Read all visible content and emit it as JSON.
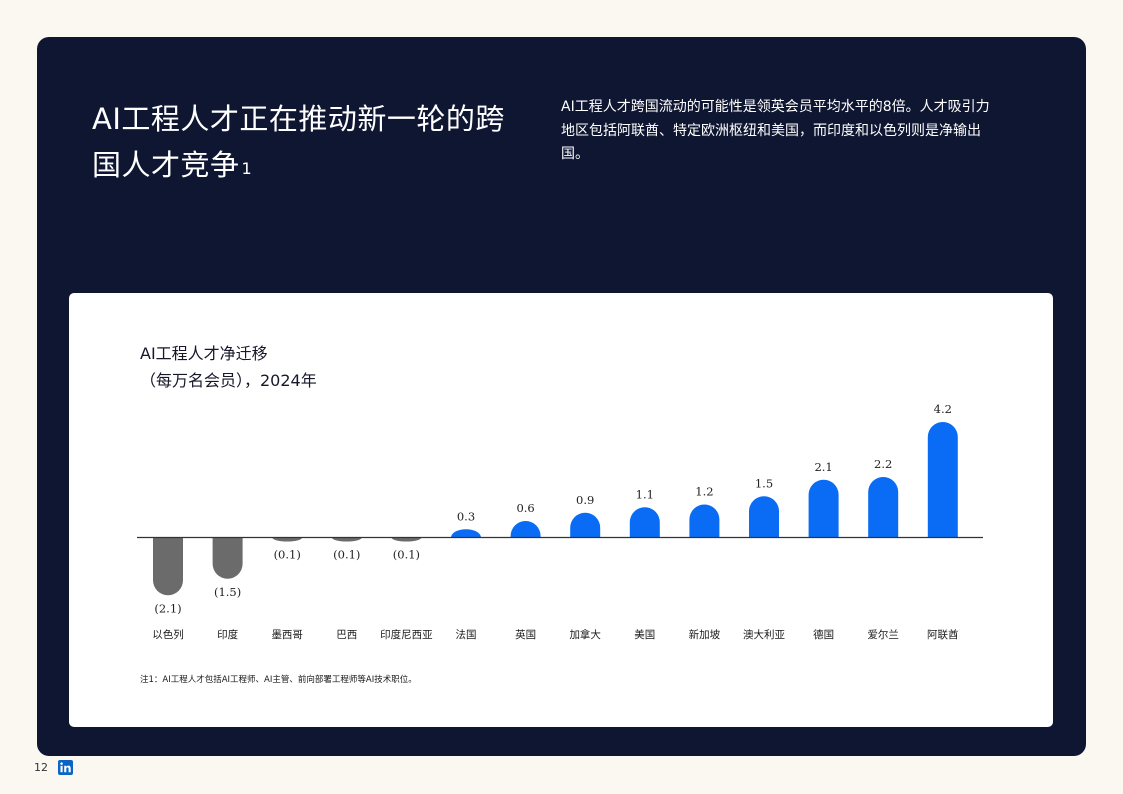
{
  "headline": {
    "text": "AI工程人才正在推动新一轮的跨国人才竞争",
    "footnote_mark": "1"
  },
  "intro": "AI工程人才跨国流动的可能性是领英会员平均水平的8倍。人才吸引力地区包括阿联酋、特定欧洲枢纽和美国，而印度和以色列则是净输出国。",
  "chart_data": {
    "type": "bar",
    "title": "AI工程人才净迁移",
    "subtitle": "（每万名会员），2024年",
    "categories": [
      "以色列",
      "印度",
      "墨西哥",
      "巴西",
      "印度尼西亚",
      "法国",
      "英国",
      "加拿大",
      "美国",
      "新加坡",
      "澳大利亚",
      "德国",
      "爱尔兰",
      "阿联酋"
    ],
    "values": [
      -2.1,
      -1.5,
      -0.1,
      -0.1,
      -0.1,
      0.3,
      0.6,
      0.9,
      1.1,
      1.2,
      1.5,
      2.1,
      2.2,
      4.2
    ],
    "value_labels": [
      "(2.1)",
      "(1.5)",
      "(0.1)",
      "(0.1)",
      "(0.1)",
      "0.3",
      "0.6",
      "0.9",
      "1.1",
      "1.2",
      "1.5",
      "2.1",
      "2.2",
      "4.2"
    ],
    "colors": {
      "positive": "#0a6cf5",
      "negative": "#6b6b6b",
      "axis": "#333333"
    },
    "grid": false
  },
  "note": "注1：AI工程人才包括AI工程师、AI主管、前向部署工程师等AI技术职位。",
  "footer": {
    "page_number": "12",
    "logo": "linkedin-logo"
  }
}
